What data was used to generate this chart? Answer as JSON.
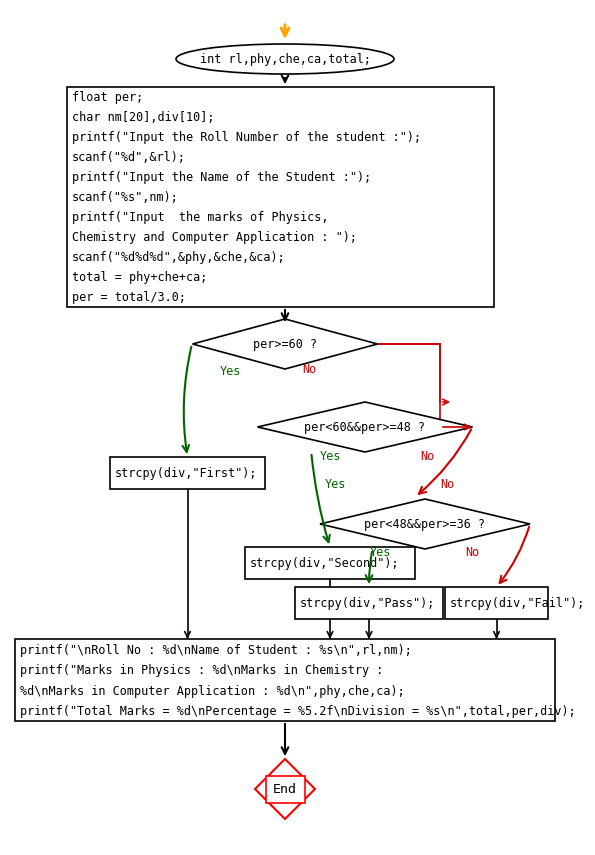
{
  "bg_color": "#ffffff",
  "font_size": 8.5,
  "font_family": "monospace",
  "yes_color": "#006400",
  "no_color": "#cc0000",
  "arrow_color": "#000000",
  "orange_color": "#FFA500",
  "rect1_lines": [
    "float per;",
    "char nm[20],div[10];",
    "printf(\"Input the Roll Number of the student :\");",
    "scanf(\"%d\",&rl);",
    "printf(\"Input the Name of the Student :\");",
    "scanf(\"%s\",nm);",
    "printf(\"Input  the marks of Physics,",
    "Chemistry and Computer Application : \");",
    "scanf(\"%d%d%d\",&phy,&che,&ca);",
    "total = phy+che+ca;",
    "per = total/3.0;"
  ],
  "rect2_lines": [
    "printf(\"\\nRoll No : %d\\nName of Student : %s\\n\",rl,nm);",
    "printf(\"Marks in Physics : %d\\nMarks in Chemistry :",
    "%d\\nMarks in Computer Application : %d\\n\",phy,che,ca);",
    "printf(\"Total Marks = %d\\nPercentage = %5.2f\\nDivision = %s\\n\",total,per,div);"
  ],
  "oval_text": "int rl,phy,che,ca,total;",
  "d1_text": "per>=60 ?",
  "d2_text": "per<60&&per>=48 ?",
  "d3_text": "per<48&&per>=36 ?",
  "first_text": "strcpy(div,\"First\");",
  "second_text": "strcpy(div,\"Second\");",
  "pass_text": "strcpy(div,\"Pass\");",
  "fail_text": "strcpy(div,\"Fail\");",
  "end_text": "End"
}
